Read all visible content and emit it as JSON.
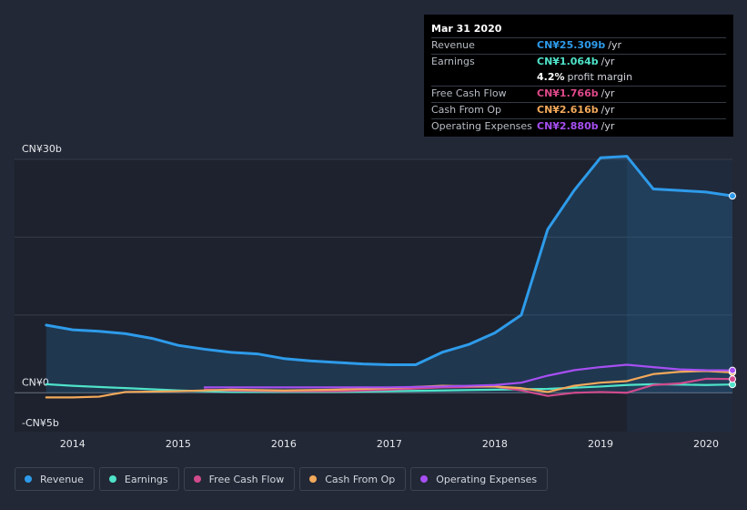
{
  "tooltip": {
    "date": "Mar 31 2020",
    "rows": [
      {
        "label": "Revenue",
        "value": "CN¥25.309b",
        "unit": "/yr",
        "color": "#2e9bea"
      },
      {
        "label": "Earnings",
        "value": "CN¥1.064b",
        "unit": "/yr",
        "color": "#4fe3c9"
      },
      {
        "label": "",
        "value": "4.2%",
        "unit": "profit margin",
        "color": "#ffffff"
      },
      {
        "label": "Free Cash Flow",
        "value": "CN¥1.766b",
        "unit": "/yr",
        "color": "#e0498a"
      },
      {
        "label": "Cash From Op",
        "value": "CN¥2.616b",
        "unit": "/yr",
        "color": "#f2a95a"
      },
      {
        "label": "Operating Expenses",
        "value": "CN¥2.880b",
        "unit": "/yr",
        "color": "#a64ff2"
      }
    ]
  },
  "legend": [
    {
      "label": "Revenue",
      "color": "#2e9bea"
    },
    {
      "label": "Earnings",
      "color": "#4fe3c9"
    },
    {
      "label": "Free Cash Flow",
      "color": "#d04a8c"
    },
    {
      "label": "Cash From Op",
      "color": "#f2a95a"
    },
    {
      "label": "Operating Expenses",
      "color": "#a64ff2"
    }
  ],
  "chart_data": {
    "type": "line",
    "title": "",
    "ylim": [
      -5,
      30
    ],
    "xlim": [
      2013.45,
      2020.25
    ],
    "y_tick_labels": [
      {
        "value": 30,
        "label": "CN¥30b"
      },
      {
        "value": 0,
        "label": "CN¥0"
      },
      {
        "value": -5,
        "label": "-CN¥5b"
      }
    ],
    "gridlines": [
      30,
      20,
      10,
      0
    ],
    "x_ticks": [
      {
        "value": 2014,
        "label": "2014"
      },
      {
        "value": 2015,
        "label": "2015"
      },
      {
        "value": 2016,
        "label": "2016"
      },
      {
        "value": 2017,
        "label": "2017"
      },
      {
        "value": 2018,
        "label": "2018"
      },
      {
        "value": 2019,
        "label": "2019"
      },
      {
        "value": 2020,
        "label": "2020"
      }
    ],
    "highlight_from": 2019.25,
    "series": [
      {
        "name": "Revenue",
        "color": "#2e9bea",
        "fill": true,
        "points": [
          [
            2013.75,
            8.7
          ],
          [
            2014.0,
            8.1
          ],
          [
            2014.25,
            7.9
          ],
          [
            2014.5,
            7.6
          ],
          [
            2014.75,
            7.0
          ],
          [
            2015.0,
            6.1
          ],
          [
            2015.25,
            5.6
          ],
          [
            2015.5,
            5.2
          ],
          [
            2015.75,
            5.0
          ],
          [
            2016.0,
            4.4
          ],
          [
            2016.25,
            4.1
          ],
          [
            2016.5,
            3.9
          ],
          [
            2016.75,
            3.7
          ],
          [
            2017.0,
            3.6
          ],
          [
            2017.25,
            3.6
          ],
          [
            2017.5,
            5.2
          ],
          [
            2017.75,
            6.2
          ],
          [
            2018.0,
            7.7
          ],
          [
            2018.25,
            10.0
          ],
          [
            2018.5,
            21.0
          ],
          [
            2018.75,
            26.0
          ],
          [
            2019.0,
            30.2
          ],
          [
            2019.25,
            30.4
          ],
          [
            2019.5,
            26.2
          ],
          [
            2019.75,
            26.0
          ],
          [
            2020.0,
            25.8
          ],
          [
            2020.25,
            25.3
          ]
        ]
      },
      {
        "name": "Earnings",
        "color": "#4fe3c9",
        "fill": false,
        "points": [
          [
            2013.75,
            1.1
          ],
          [
            2014.0,
            0.9
          ],
          [
            2014.5,
            0.6
          ],
          [
            2015.0,
            0.3
          ],
          [
            2015.5,
            0.1
          ],
          [
            2016.0,
            0.1
          ],
          [
            2016.5,
            0.1
          ],
          [
            2017.0,
            0.2
          ],
          [
            2017.5,
            0.3
          ],
          [
            2018.0,
            0.4
          ],
          [
            2018.5,
            0.5
          ],
          [
            2019.0,
            0.8
          ],
          [
            2019.25,
            1.0
          ],
          [
            2019.5,
            1.1
          ],
          [
            2020.0,
            1.0
          ],
          [
            2020.25,
            1.064
          ]
        ]
      },
      {
        "name": "Free Cash Flow",
        "color": "#d04a8c",
        "fill": false,
        "points": [
          [
            2015.25,
            0.4
          ],
          [
            2015.5,
            0.3
          ],
          [
            2016.0,
            0.2
          ],
          [
            2016.5,
            0.2
          ],
          [
            2017.0,
            0.4
          ],
          [
            2017.5,
            0.7
          ],
          [
            2018.0,
            0.8
          ],
          [
            2018.25,
            0.3
          ],
          [
            2018.5,
            -0.4
          ],
          [
            2018.75,
            0.0
          ],
          [
            2019.0,
            0.1
          ],
          [
            2019.25,
            0.0
          ],
          [
            2019.5,
            1.0
          ],
          [
            2019.75,
            1.2
          ],
          [
            2020.0,
            1.8
          ],
          [
            2020.25,
            1.766
          ]
        ]
      },
      {
        "name": "Cash From Op",
        "color": "#f2a95a",
        "fill": false,
        "points": [
          [
            2013.75,
            -0.6
          ],
          [
            2014.0,
            -0.6
          ],
          [
            2014.25,
            -0.5
          ],
          [
            2014.5,
            0.1
          ],
          [
            2015.0,
            0.2
          ],
          [
            2015.5,
            0.4
          ],
          [
            2016.0,
            0.3
          ],
          [
            2016.5,
            0.4
          ],
          [
            2017.0,
            0.6
          ],
          [
            2017.5,
            0.9
          ],
          [
            2018.0,
            0.8
          ],
          [
            2018.25,
            0.6
          ],
          [
            2018.5,
            0.1
          ],
          [
            2018.75,
            0.9
          ],
          [
            2019.0,
            1.3
          ],
          [
            2019.25,
            1.5
          ],
          [
            2019.5,
            2.4
          ],
          [
            2019.75,
            2.7
          ],
          [
            2020.0,
            2.8
          ],
          [
            2020.25,
            2.616
          ]
        ]
      },
      {
        "name": "Operating Expenses",
        "color": "#a64ff2",
        "fill": false,
        "points": [
          [
            2015.25,
            0.7
          ],
          [
            2015.5,
            0.7
          ],
          [
            2016.0,
            0.7
          ],
          [
            2016.5,
            0.7
          ],
          [
            2017.0,
            0.7
          ],
          [
            2017.5,
            0.8
          ],
          [
            2018.0,
            1.0
          ],
          [
            2018.25,
            1.3
          ],
          [
            2018.5,
            2.2
          ],
          [
            2018.75,
            2.9
          ],
          [
            2019.0,
            3.3
          ],
          [
            2019.25,
            3.6
          ],
          [
            2019.5,
            3.3
          ],
          [
            2019.75,
            3.0
          ],
          [
            2020.0,
            2.9
          ],
          [
            2020.25,
            2.88
          ]
        ]
      }
    ]
  }
}
